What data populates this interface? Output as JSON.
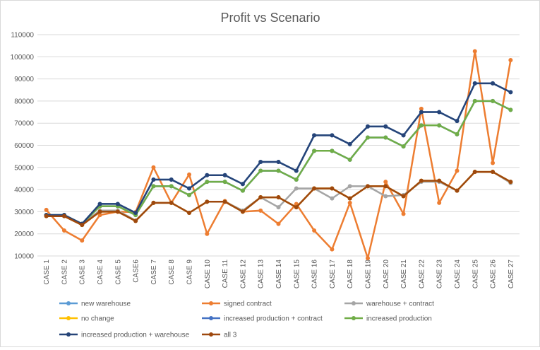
{
  "chart_data": {
    "type": "line",
    "title": "Profit vs Scenario",
    "xlabel": "",
    "ylabel": "",
    "ylim": [
      10000,
      110000
    ],
    "yticks": [
      10000,
      20000,
      30000,
      40000,
      50000,
      60000,
      70000,
      80000,
      90000,
      100000,
      110000
    ],
    "grid": "horizontal",
    "legend_position": "bottom",
    "categories": [
      "CASE 1",
      "CASE 2",
      "CASE 3",
      "CASE 4",
      "CASE 5",
      "CASE6",
      "CASE 7",
      "CASE 8",
      "CASE 9",
      "CASE 10",
      "CASE 11",
      "CASE 12",
      "CASE 13",
      "CASE 14",
      "CASE 15",
      "CASE 16",
      "CASE 17",
      "CASE 18",
      "CASE 19",
      "CASE 20",
      "CASE 21",
      "CASE 22",
      "CASE 23",
      "CASE 24",
      "CASE 25",
      "CASE 26",
      "CASE 27"
    ],
    "series": [
      {
        "name": "new warehouse",
        "color": "#5b9bd5",
        "values": [
          28500,
          28500,
          24500,
          33500,
          33500,
          29500,
          44500,
          44500,
          40500,
          46500,
          46500,
          42500,
          52500,
          52500,
          48500,
          64500,
          64500,
          60500,
          68500,
          68500,
          64500,
          75000,
          75000,
          71000,
          88000,
          88000,
          84000
        ]
      },
      {
        "name": "signed contract",
        "color": "#ed7d31",
        "values": [
          30800,
          21500,
          17000,
          28500,
          30000,
          29800,
          50000,
          34000,
          46800,
          20000,
          34800,
          30000,
          30500,
          24500,
          33500,
          21500,
          13000,
          34000,
          9000,
          43500,
          29000,
          76500,
          34000,
          48500,
          102500,
          52000,
          98500
        ]
      },
      {
        "name": "warehouse + contract",
        "color": "#a5a5a5",
        "values": [
          28500,
          28500,
          24500,
          30500,
          30500,
          26000,
          34000,
          34000,
          29500,
          34500,
          34500,
          30500,
          36500,
          32000,
          40500,
          40500,
          36000,
          41500,
          41500,
          37000,
          37500,
          43500,
          43500,
          39500,
          48000,
          48000,
          43000
        ]
      },
      {
        "name": "no change",
        "color": "#ffc000",
        "values": [
          28000,
          28000,
          24000,
          30000,
          30000,
          25800,
          34000,
          34000,
          29500,
          34500,
          34500,
          30000,
          36500,
          36500,
          32000,
          40500,
          40500,
          36000,
          41500,
          41500,
          37000,
          44000,
          44000,
          39500,
          48000,
          48000,
          43500
        ]
      },
      {
        "name": "increased production + contract",
        "color": "#4472c4",
        "values": [
          28500,
          28500,
          24500,
          32500,
          32500,
          28500,
          41500,
          41500,
          37500,
          43500,
          43500,
          39500,
          48500,
          48500,
          44500,
          57500,
          57500,
          53500,
          63500,
          63500,
          59500,
          69000,
          69000,
          65000,
          80000,
          80000,
          76000
        ]
      },
      {
        "name": "increased production",
        "color": "#70ad47",
        "values": [
          28500,
          28500,
          24500,
          32500,
          32500,
          28500,
          41500,
          41500,
          37500,
          43500,
          43500,
          39500,
          48500,
          48500,
          44500,
          57500,
          57500,
          53500,
          63500,
          63500,
          59500,
          69000,
          69000,
          65000,
          80000,
          80000,
          76000
        ]
      },
      {
        "name": "increased production + warehouse",
        "color": "#264478",
        "values": [
          28500,
          28500,
          24500,
          33500,
          33500,
          29500,
          44500,
          44500,
          40500,
          46500,
          46500,
          42500,
          52500,
          52500,
          48500,
          64500,
          64500,
          60500,
          68500,
          68500,
          64500,
          75000,
          75000,
          71000,
          88000,
          88000,
          84000
        ]
      },
      {
        "name": "all 3",
        "color": "#9e480e",
        "values": [
          28000,
          28000,
          24000,
          30000,
          30000,
          25800,
          34000,
          34000,
          29500,
          34500,
          34500,
          30000,
          36500,
          36500,
          32000,
          40500,
          40500,
          36000,
          41500,
          41500,
          37000,
          44000,
          44000,
          39500,
          48000,
          48000,
          43500
        ]
      }
    ]
  },
  "legend": {
    "items": [
      "new warehouse",
      "signed contract",
      "warehouse + contract",
      "no change",
      "increased production + contract",
      "increased production",
      "increased production + warehouse",
      "all 3"
    ]
  }
}
